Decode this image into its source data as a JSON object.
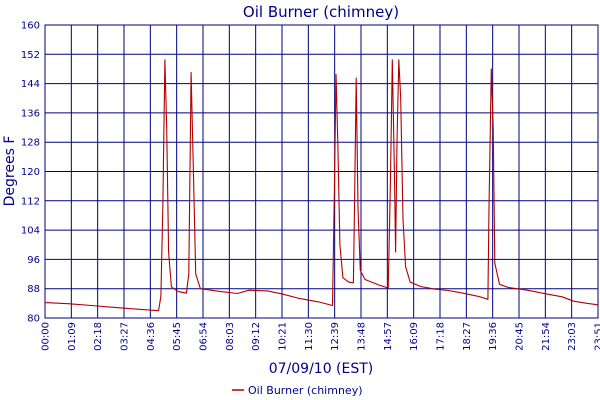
{
  "chart_data": {
    "type": "line",
    "title": "Oil Burner (chimney)",
    "xlabel": "07/09/10 (EST)",
    "ylabel": "Degrees F",
    "ylim": [
      80,
      160
    ],
    "y_ticks": [
      "80",
      "88",
      "96",
      "104",
      "112",
      "120",
      "128",
      "136",
      "144",
      "152",
      "160"
    ],
    "x_ticks": [
      "00:00",
      "01:09",
      "02:18",
      "03:27",
      "04:36",
      "05:45",
      "06:54",
      "08:03",
      "09:12",
      "10:21",
      "11:30",
      "12:39",
      "13:48",
      "14:57",
      "16:09",
      "17:18",
      "18:27",
      "19:36",
      "20:45",
      "21:54",
      "23:03",
      "23:51"
    ],
    "grid": true,
    "legend_position": "bottom-center",
    "series": [
      {
        "name": "Oil Burner (chimney)",
        "color": "#b00000",
        "points": [
          [
            0.0,
            84.2
          ],
          [
            1.0,
            83.9
          ],
          [
            2.0,
            83.4
          ],
          [
            3.0,
            82.9
          ],
          [
            4.0,
            82.4
          ],
          [
            4.9,
            82.0
          ],
          [
            5.0,
            86.0
          ],
          [
            5.08,
            110.0
          ],
          [
            5.17,
            150.5
          ],
          [
            5.25,
            132.0
          ],
          [
            5.33,
            98.0
          ],
          [
            5.45,
            88.5
          ],
          [
            5.75,
            87.2
          ],
          [
            6.1,
            86.8
          ],
          [
            6.2,
            92.0
          ],
          [
            6.3,
            147.0
          ],
          [
            6.4,
            120.0
          ],
          [
            6.5,
            92.0
          ],
          [
            6.7,
            88.0
          ],
          [
            7.5,
            87.3
          ],
          [
            8.3,
            86.7
          ],
          [
            8.8,
            87.6
          ],
          [
            9.6,
            87.4
          ],
          [
            10.2,
            86.6
          ],
          [
            11.0,
            85.3
          ],
          [
            11.8,
            84.4
          ],
          [
            12.4,
            83.4
          ],
          [
            12.48,
            115.0
          ],
          [
            12.55,
            146.5
          ],
          [
            12.63,
            128.0
          ],
          [
            12.72,
            100.0
          ],
          [
            12.85,
            91.0
          ],
          [
            13.1,
            89.8
          ],
          [
            13.3,
            89.6
          ],
          [
            13.35,
            110.0
          ],
          [
            13.42,
            145.5
          ],
          [
            13.5,
            110.0
          ],
          [
            13.6,
            93.0
          ],
          [
            13.8,
            90.5
          ],
          [
            14.4,
            89.0
          ],
          [
            14.8,
            88.2
          ],
          [
            14.9,
            118.0
          ],
          [
            14.98,
            150.5
          ],
          [
            15.07,
            120.0
          ],
          [
            15.12,
            98.0
          ],
          [
            15.18,
            128.0
          ],
          [
            15.26,
            150.5
          ],
          [
            15.34,
            140.0
          ],
          [
            15.44,
            107.0
          ],
          [
            15.55,
            94.0
          ],
          [
            15.75,
            89.8
          ],
          [
            16.2,
            88.6
          ],
          [
            16.8,
            87.9
          ],
          [
            17.4,
            87.5
          ],
          [
            18.0,
            86.8
          ],
          [
            18.7,
            85.9
          ],
          [
            19.1,
            85.1
          ],
          [
            19.15,
            110.0
          ],
          [
            19.25,
            148.0
          ],
          [
            19.33,
            132.0
          ],
          [
            19.4,
            95.0
          ],
          [
            19.6,
            89.2
          ],
          [
            20.0,
            88.3
          ],
          [
            20.8,
            87.6
          ],
          [
            21.6,
            86.6
          ],
          [
            22.3,
            85.8
          ],
          [
            22.8,
            84.6
          ],
          [
            23.4,
            84.0
          ],
          [
            23.85,
            83.6
          ]
        ]
      }
    ]
  }
}
